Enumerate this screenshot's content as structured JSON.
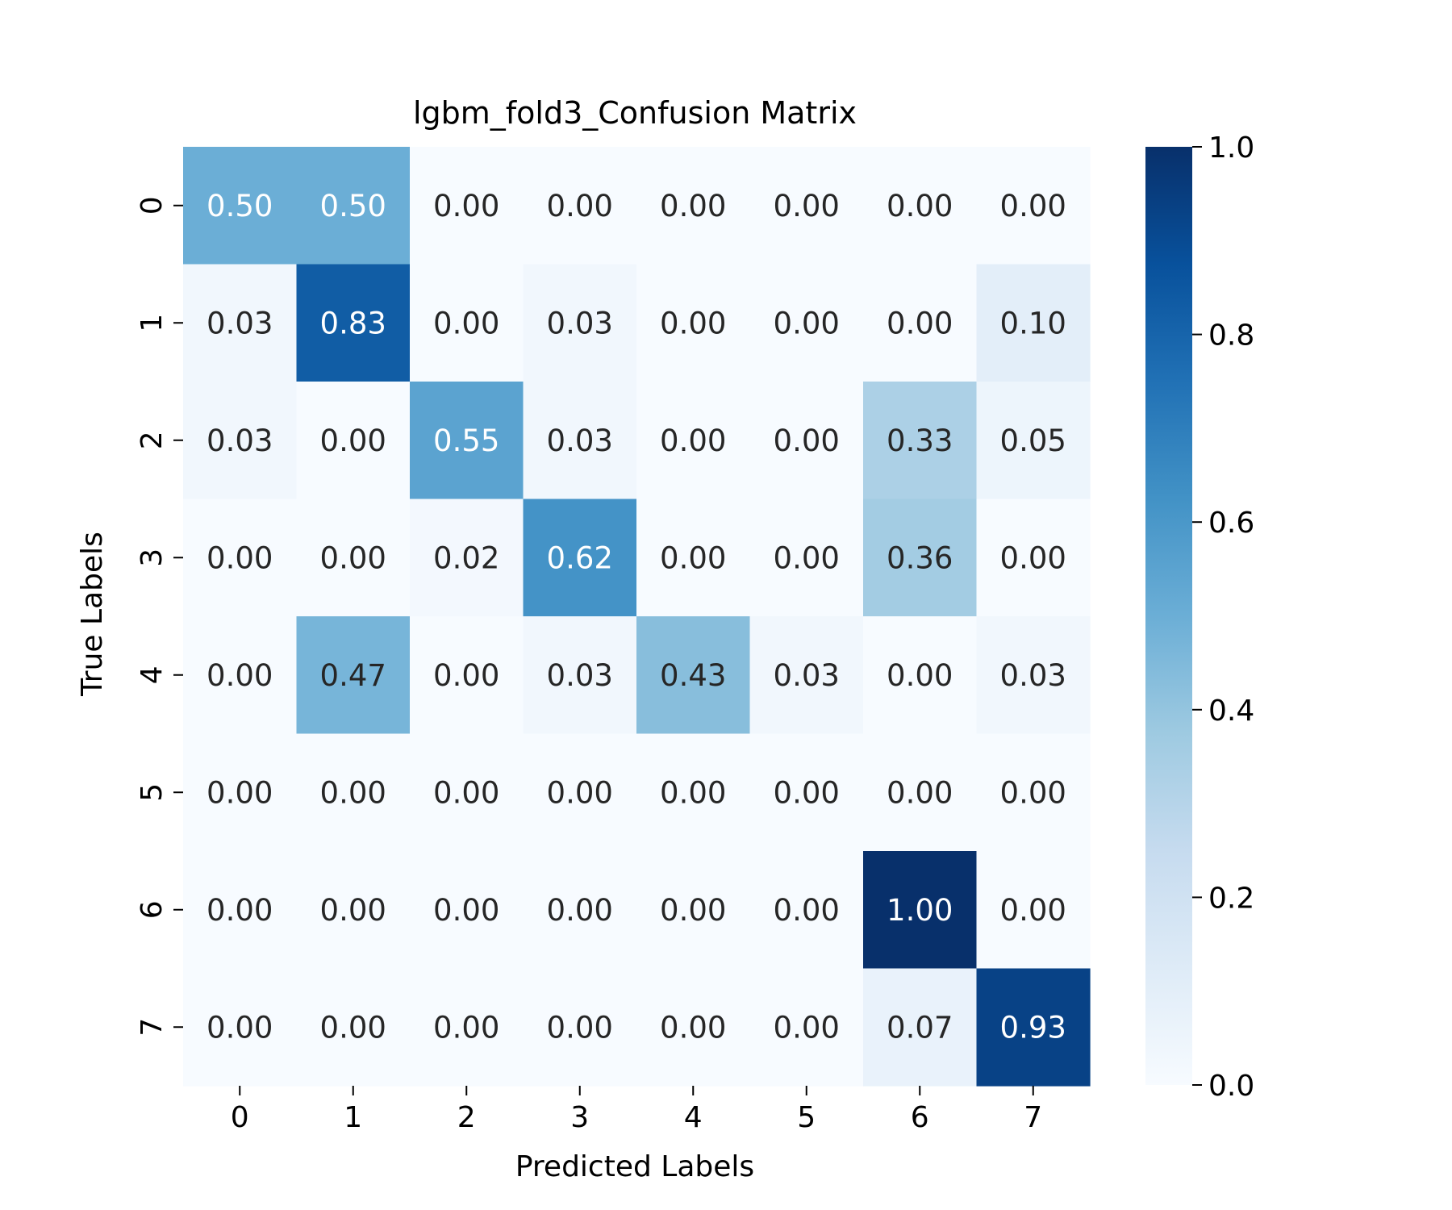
{
  "chart_data": {
    "type": "heatmap",
    "title": "lgbm_fold3_Confusion Matrix",
    "xlabel": "Predicted Labels",
    "ylabel": "True Labels",
    "x_categories": [
      "0",
      "1",
      "2",
      "3",
      "4",
      "5",
      "6",
      "7"
    ],
    "y_categories": [
      "0",
      "1",
      "2",
      "3",
      "4",
      "5",
      "6",
      "7"
    ],
    "values": [
      [
        0.5,
        0.5,
        0.0,
        0.0,
        0.0,
        0.0,
        0.0,
        0.0
      ],
      [
        0.03,
        0.83,
        0.0,
        0.03,
        0.0,
        0.0,
        0.0,
        0.1
      ],
      [
        0.03,
        0.0,
        0.55,
        0.03,
        0.0,
        0.0,
        0.33,
        0.05
      ],
      [
        0.0,
        0.0,
        0.02,
        0.62,
        0.0,
        0.0,
        0.36,
        0.0
      ],
      [
        0.0,
        0.47,
        0.0,
        0.03,
        0.43,
        0.03,
        0.0,
        0.03
      ],
      [
        0.0,
        0.0,
        0.0,
        0.0,
        0.0,
        0.0,
        0.0,
        0.0
      ],
      [
        0.0,
        0.0,
        0.0,
        0.0,
        0.0,
        0.0,
        1.0,
        0.0
      ],
      [
        0.0,
        0.0,
        0.0,
        0.0,
        0.0,
        0.0,
        0.07,
        0.93
      ]
    ],
    "value_format_decimals": 2,
    "colormap": "Blues",
    "colorbar": {
      "range": [
        0.0,
        1.0
      ],
      "ticks": [
        0.0,
        0.2,
        0.4,
        0.6,
        0.8,
        1.0
      ],
      "tick_labels": [
        "0.0",
        "0.2",
        "0.4",
        "0.6",
        "0.8",
        "1.0"
      ]
    },
    "grid": false,
    "colors": {
      "dark_text": "#262626",
      "light_text": "#ffffff",
      "axis": "#000000"
    }
  }
}
